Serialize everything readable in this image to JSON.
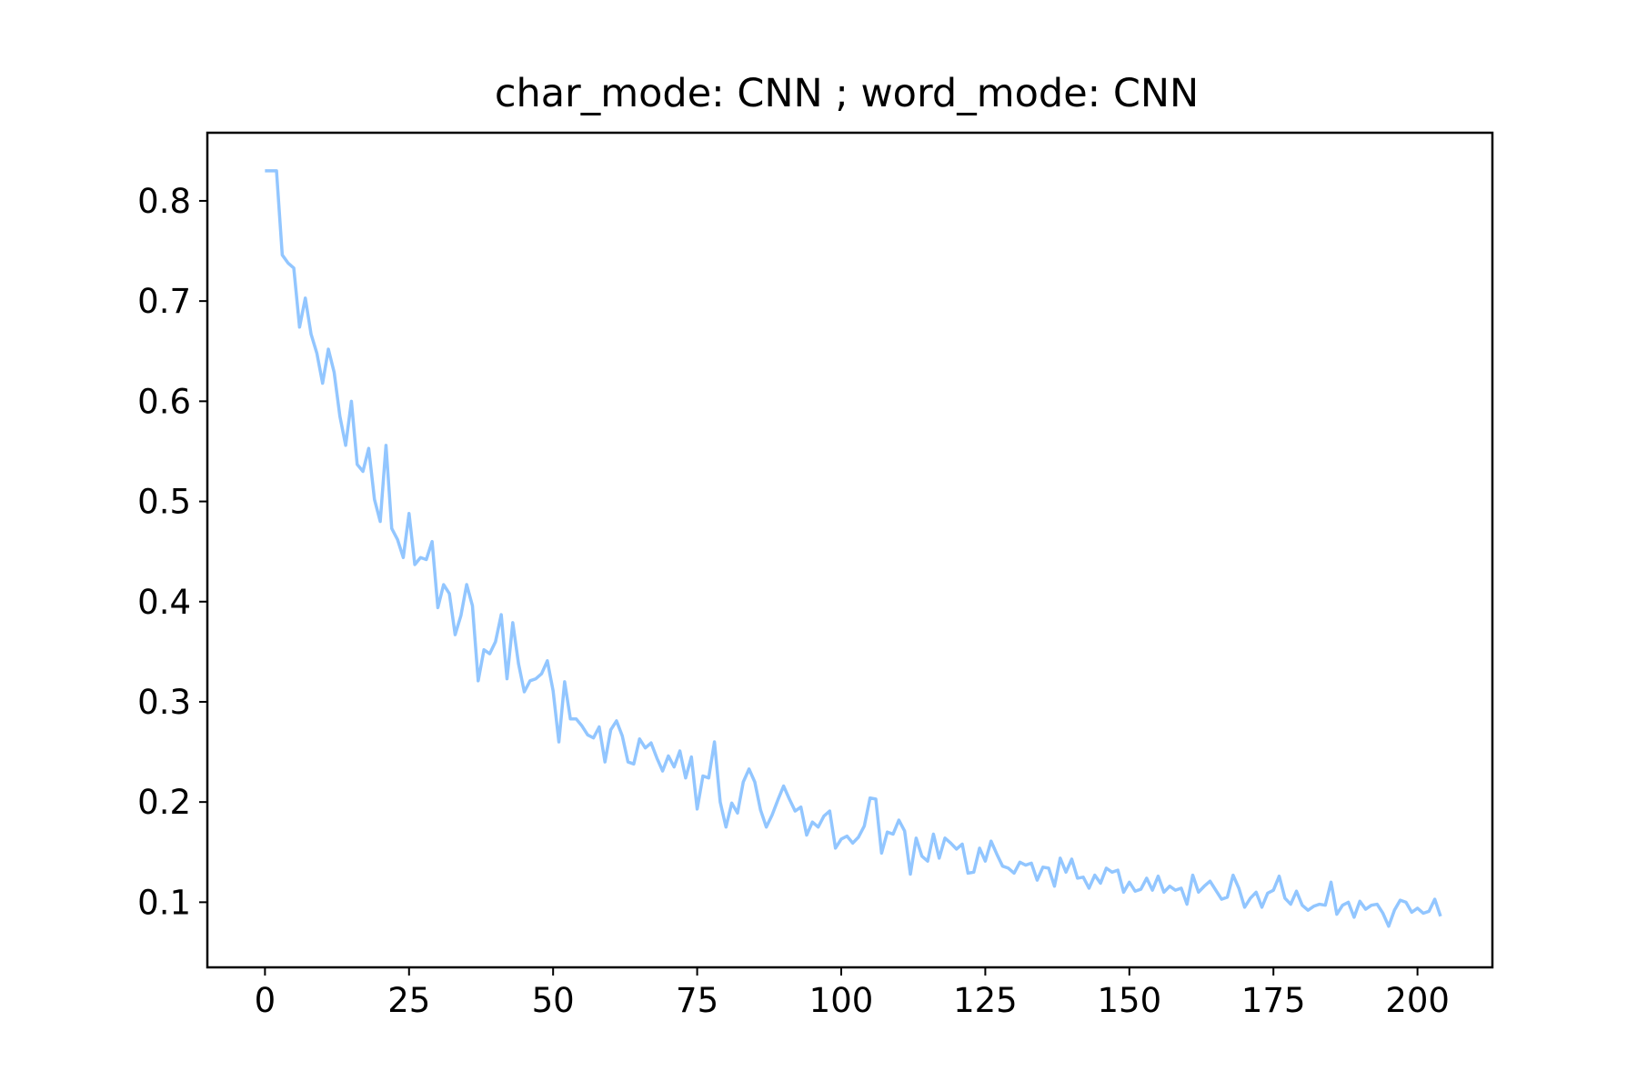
{
  "chart_data": {
    "type": "line",
    "title": "char_mode: CNN ; word_mode: CNN",
    "xlabel": "",
    "ylabel": "",
    "xlim": [
      -10,
      213
    ],
    "ylim": [
      0.035,
      0.868
    ],
    "grid": false,
    "legend": "none",
    "x_ticks": [
      0,
      25,
      50,
      75,
      100,
      125,
      150,
      175,
      200
    ],
    "y_ticks": [
      0.1,
      0.2,
      0.3,
      0.4,
      0.5,
      0.6,
      0.7,
      0.8
    ],
    "y_tick_labels": [
      "0.1",
      "0.2",
      "0.3",
      "0.4",
      "0.5",
      "0.6",
      "0.7",
      "0.8"
    ],
    "series": [
      {
        "color": "#92c6ff",
        "x_start": 0,
        "x_step": 1,
        "values": [
          0.83,
          0.83,
          0.83,
          0.746,
          0.738,
          0.733,
          0.674,
          0.703,
          0.667,
          0.648,
          0.618,
          0.652,
          0.629,
          0.585,
          0.556,
          0.6,
          0.537,
          0.53,
          0.553,
          0.502,
          0.48,
          0.556,
          0.473,
          0.462,
          0.444,
          0.488,
          0.437,
          0.444,
          0.442,
          0.46,
          0.394,
          0.417,
          0.408,
          0.367,
          0.386,
          0.417,
          0.396,
          0.321,
          0.352,
          0.348,
          0.36,
          0.387,
          0.323,
          0.379,
          0.338,
          0.31,
          0.321,
          0.323,
          0.328,
          0.341,
          0.311,
          0.26,
          0.32,
          0.283,
          0.283,
          0.276,
          0.267,
          0.264,
          0.275,
          0.24,
          0.272,
          0.281,
          0.266,
          0.24,
          0.238,
          0.263,
          0.254,
          0.259,
          0.244,
          0.231,
          0.246,
          0.235,
          0.251,
          0.224,
          0.245,
          0.193,
          0.226,
          0.224,
          0.26,
          0.2,
          0.175,
          0.199,
          0.189,
          0.22,
          0.233,
          0.22,
          0.192,
          0.175,
          0.187,
          0.202,
          0.216,
          0.203,
          0.191,
          0.195,
          0.167,
          0.18,
          0.175,
          0.186,
          0.191,
          0.154,
          0.163,
          0.166,
          0.159,
          0.165,
          0.176,
          0.204,
          0.203,
          0.149,
          0.17,
          0.168,
          0.182,
          0.171,
          0.128,
          0.164,
          0.146,
          0.141,
          0.168,
          0.144,
          0.164,
          0.159,
          0.153,
          0.158,
          0.129,
          0.13,
          0.154,
          0.141,
          0.161,
          0.148,
          0.136,
          0.134,
          0.129,
          0.14,
          0.137,
          0.139,
          0.122,
          0.135,
          0.134,
          0.116,
          0.144,
          0.13,
          0.143,
          0.124,
          0.125,
          0.114,
          0.127,
          0.119,
          0.134,
          0.13,
          0.132,
          0.11,
          0.12,
          0.111,
          0.113,
          0.124,
          0.112,
          0.126,
          0.11,
          0.116,
          0.112,
          0.114,
          0.098,
          0.127,
          0.11,
          0.116,
          0.121,
          0.112,
          0.103,
          0.105,
          0.127,
          0.114,
          0.095,
          0.104,
          0.11,
          0.095,
          0.109,
          0.112,
          0.126,
          0.104,
          0.098,
          0.111,
          0.097,
          0.092,
          0.096,
          0.098,
          0.097,
          0.12,
          0.088,
          0.097,
          0.1,
          0.085,
          0.101,
          0.093,
          0.097,
          0.098,
          0.089,
          0.076,
          0.092,
          0.102,
          0.1,
          0.09,
          0.094,
          0.089,
          0.091,
          0.103,
          0.086
        ]
      }
    ]
  }
}
